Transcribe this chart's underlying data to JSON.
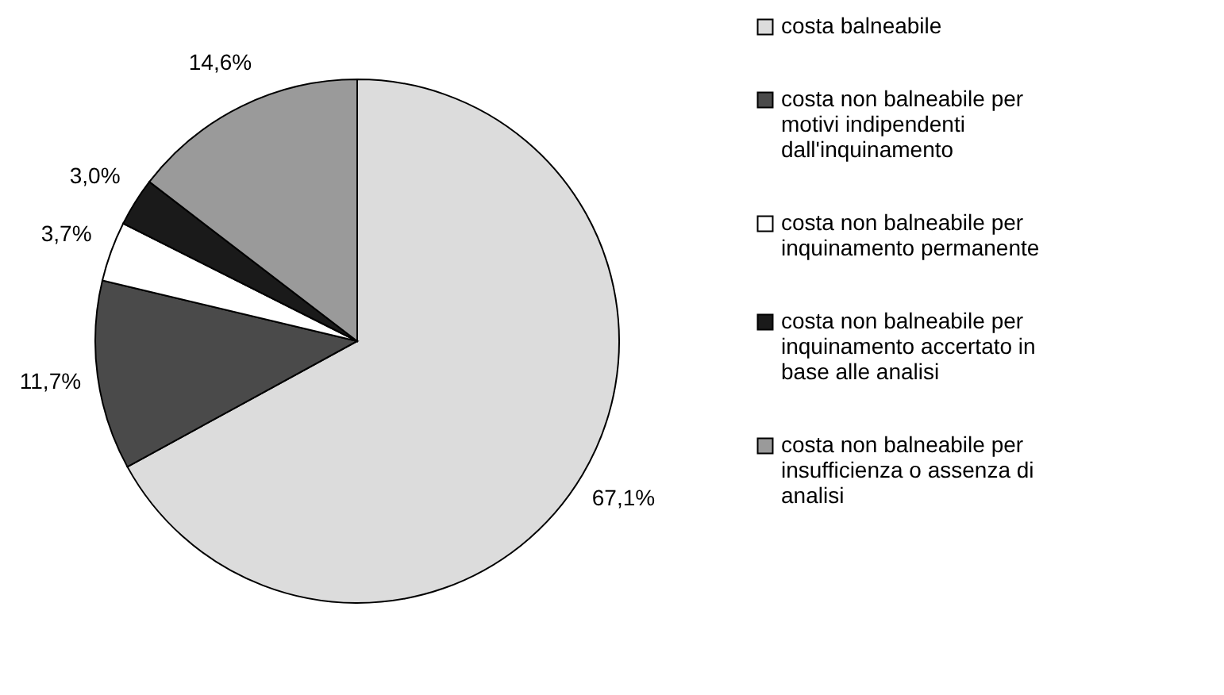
{
  "chart_data": {
    "type": "pie",
    "categories": [
      "costa balneabile",
      "costa non balneabile per motivi indipendenti dall'inquinamento",
      "costa non balneabile per inquinamento  permanente",
      "costa non balneabile per inquinamento accertato in base alle analisi",
      "costa non balneabile per insufficienza o assenza di analisi"
    ],
    "values": [
      67.1,
      11.7,
      3.7,
      3.0,
      14.6
    ],
    "value_labels": [
      "67,1%",
      "11,7%",
      "3,7%",
      "3,0%",
      "14,6%"
    ],
    "colors": [
      "#dcdcdc",
      "#4a4a4a",
      "#ffffff",
      "#1a1a1a",
      "#9a9a9a"
    ],
    "legend": "right"
  }
}
